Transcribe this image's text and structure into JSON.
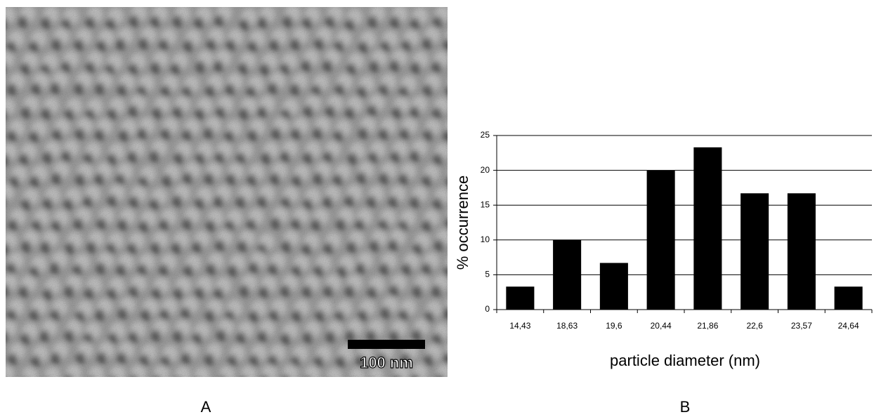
{
  "panels": {
    "a_label": "A",
    "b_label": "B"
  },
  "micrograph": {
    "scale_bar_label": "100 nm"
  },
  "chart_data": {
    "type": "bar",
    "xlabel": "particle diameter (nm)",
    "ylabel": "% occurrence",
    "categories": [
      "14,43",
      "18,63",
      "19,6",
      "20,44",
      "21,86",
      "22,6",
      "23,57",
      "24,64"
    ],
    "values": [
      3.3,
      10,
      6.7,
      20,
      23.3,
      16.7,
      16.7,
      3.3
    ],
    "color": "#000000",
    "ylim": [
      0,
      25
    ],
    "yticks": [
      0,
      5,
      10,
      15,
      20,
      25
    ],
    "grid": true
  }
}
